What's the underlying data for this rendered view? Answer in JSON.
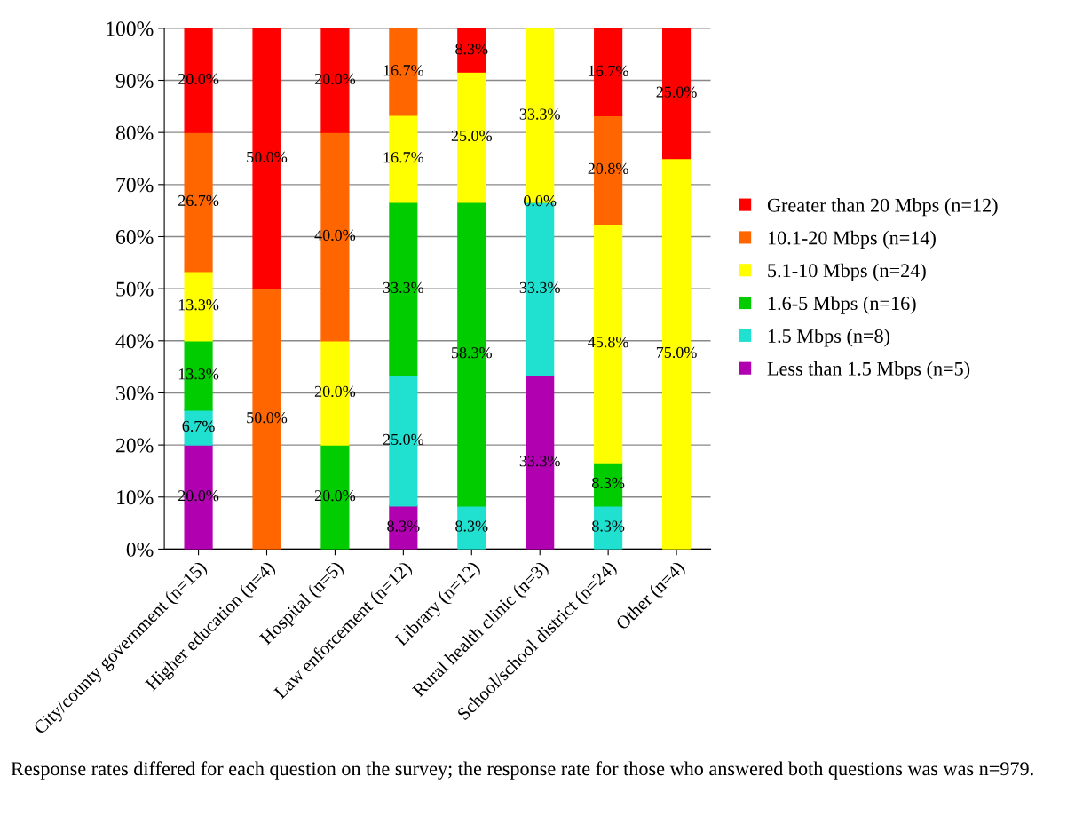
{
  "chart_data": {
    "type": "bar",
    "stacked": true,
    "categories": [
      "City/county government (n=15)",
      "Higher education (n=4)",
      "Hospital (n=5)",
      "Law enforcement (n=12)",
      "Library (n=12)",
      "Rural health clinic (n=3)",
      "School/school district (n=24)",
      "Other (n=4)"
    ],
    "series": [
      {
        "name": "Less than 1.5 Mbps (n=5)",
        "color": "#b000b0",
        "values": [
          20.0,
          null,
          null,
          8.3,
          null,
          33.3,
          null,
          null
        ],
        "value_labels": [
          "20.0%",
          null,
          null,
          "8.3%",
          null,
          "33.3%",
          null,
          null
        ]
      },
      {
        "name": "1.5 Mbps (n=8)",
        "color": "#20e0d0",
        "values": [
          6.7,
          null,
          null,
          25.0,
          8.3,
          33.3,
          8.3,
          null
        ],
        "value_labels": [
          "6.7%",
          null,
          null,
          "25.0%",
          "8.3%",
          "33.3%",
          "8.3%",
          null
        ]
      },
      {
        "name": "1.6-5 Mbps (n=16)",
        "color": "#00cc00",
        "values": [
          13.3,
          null,
          20.0,
          33.3,
          58.3,
          0.0,
          8.3,
          null
        ],
        "value_labels": [
          "13.3%",
          null,
          "20.0%",
          "33.3%",
          "58.3%",
          "0.0%",
          "8.3%",
          null
        ]
      },
      {
        "name": "5.1-10 Mbps (n=24)",
        "color": "#ffff00",
        "values": [
          13.3,
          null,
          20.0,
          16.7,
          25.0,
          33.3,
          45.8,
          75.0
        ],
        "value_labels": [
          "13.3%",
          null,
          "20.0%",
          "16.7%",
          "25.0%",
          "33.3%",
          "45.8%",
          "75.0%"
        ]
      },
      {
        "name": "10.1-20 Mbps (n=14)",
        "color": "#ff6600",
        "values": [
          26.7,
          50.0,
          40.0,
          16.7,
          null,
          null,
          20.8,
          null
        ],
        "value_labels": [
          "26.7%",
          "50.0%",
          "40.0%",
          "16.7%",
          null,
          null,
          "20.8%",
          null
        ]
      },
      {
        "name": "Greater than 20 Mbps (n=12)",
        "color": "#ff0000",
        "values": [
          20.0,
          50.0,
          20.0,
          null,
          8.3,
          null,
          16.7,
          25.0
        ],
        "value_labels": [
          "20.0%",
          "50.0%",
          "20.0%",
          null,
          "8.3%",
          null,
          "16.7%",
          "25.0%"
        ]
      }
    ],
    "ylim": [
      0,
      100
    ],
    "yticks": [
      {
        "value": 0,
        "label": "0%"
      },
      {
        "value": 10,
        "label": "10%"
      },
      {
        "value": 20,
        "label": "20%"
      },
      {
        "value": 30,
        "label": "30%"
      },
      {
        "value": 40,
        "label": "40%"
      },
      {
        "value": 50,
        "label": "50%"
      },
      {
        "value": 60,
        "label": "60%"
      },
      {
        "value": 70,
        "label": "70%"
      },
      {
        "value": 80,
        "label": "80%"
      },
      {
        "value": 90,
        "label": "90%"
      },
      {
        "value": 100,
        "label": "100%"
      }
    ],
    "grid": "y",
    "legend": "right",
    "annotations": [
      "Response rates differed for each question on the survey; the response rate for those who answered both questions was was n=979."
    ]
  }
}
